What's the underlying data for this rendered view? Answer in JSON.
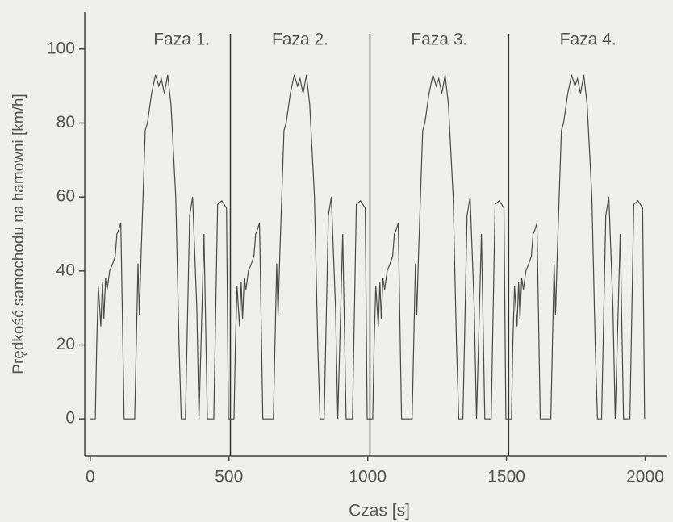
{
  "chart_data": {
    "type": "line",
    "x_label": "Czas   [s]",
    "y_label": "Prędkość samochodu na hamowni   [km/h]",
    "annotations": [
      "Faza 1.",
      "Faza 2.",
      "Faza 3.",
      "Faza 4."
    ],
    "phase_boundaries": [
      505,
      1008,
      1508
    ],
    "xlim": [
      -20,
      2080
    ],
    "ylim": [
      -10,
      110
    ],
    "xticks": [
      0,
      500,
      1000,
      1500,
      2000
    ],
    "yticks": [
      0,
      20,
      40,
      60,
      80,
      100
    ],
    "grid": false,
    "series": [
      {
        "color": "#4a4a4a",
        "x": [
          0,
          18,
          23,
          29,
          38,
          44,
          49,
          55,
          61,
          70,
          81,
          90,
          96,
          102,
          110,
          122,
          160,
          172,
          177,
          183,
          198,
          206,
          221,
          235,
          247,
          256,
          267,
          279,
          291,
          308,
          320,
          328,
          343,
          358,
          369,
          384,
          392,
          410,
          422,
          445,
          459,
          474,
          491,
          498,
          500,
          518,
          523,
          529,
          538,
          544,
          549,
          555,
          561,
          570,
          581,
          590,
          596,
          602,
          610,
          622,
          660,
          672,
          677,
          683,
          698,
          706,
          721,
          735,
          747,
          756,
          767,
          779,
          791,
          808,
          820,
          828,
          843,
          858,
          869,
          884,
          892,
          910,
          922,
          945,
          959,
          974,
          991,
          998,
          1000,
          1018,
          1023,
          1029,
          1038,
          1044,
          1049,
          1055,
          1061,
          1070,
          1081,
          1090,
          1096,
          1102,
          1110,
          1122,
          1160,
          1172,
          1177,
          1183,
          1198,
          1206,
          1221,
          1235,
          1247,
          1256,
          1267,
          1279,
          1291,
          1308,
          1320,
          1328,
          1343,
          1358,
          1369,
          1384,
          1392,
          1410,
          1422,
          1445,
          1459,
          1474,
          1491,
          1498,
          1500,
          1518,
          1523,
          1529,
          1538,
          1544,
          1549,
          1555,
          1561,
          1570,
          1581,
          1590,
          1596,
          1602,
          1610,
          1622,
          1660,
          1672,
          1677,
          1683,
          1698,
          1706,
          1721,
          1735,
          1747,
          1756,
          1767,
          1779,
          1791,
          1808,
          1820,
          1828,
          1843,
          1858,
          1869,
          1884,
          1892,
          1910,
          1922,
          1945,
          1959,
          1974,
          1991,
          1998
        ],
        "values": [
          0,
          0,
          20,
          36,
          25,
          37,
          27,
          38,
          35,
          40,
          42,
          44,
          50,
          51,
          53,
          0,
          0,
          42,
          28,
          44,
          78,
          80,
          88,
          93,
          90,
          92,
          88,
          93,
          85,
          60,
          20,
          0,
          0,
          55,
          60,
          30,
          0,
          50,
          0,
          0,
          58,
          59,
          57,
          0,
          0,
          0,
          20,
          36,
          25,
          37,
          27,
          38,
          35,
          40,
          42,
          44,
          50,
          51,
          53,
          0,
          0,
          42,
          28,
          44,
          78,
          80,
          88,
          93,
          90,
          92,
          88,
          93,
          85,
          60,
          20,
          0,
          0,
          55,
          60,
          30,
          0,
          50,
          0,
          0,
          58,
          59,
          57,
          0,
          0,
          0,
          20,
          36,
          25,
          37,
          27,
          38,
          35,
          40,
          42,
          44,
          50,
          51,
          53,
          0,
          0,
          42,
          28,
          44,
          78,
          80,
          88,
          93,
          90,
          92,
          88,
          93,
          85,
          60,
          20,
          0,
          0,
          55,
          60,
          30,
          0,
          50,
          0,
          0,
          58,
          59,
          57,
          0,
          0,
          0,
          20,
          36,
          25,
          37,
          27,
          38,
          35,
          40,
          42,
          44,
          50,
          51,
          53,
          0,
          0,
          42,
          28,
          44,
          78,
          80,
          88,
          93,
          90,
          92,
          88,
          93,
          85,
          60,
          20,
          0,
          0,
          55,
          60,
          30,
          0,
          50,
          0,
          0,
          58,
          59,
          57,
          0
        ]
      }
    ]
  }
}
